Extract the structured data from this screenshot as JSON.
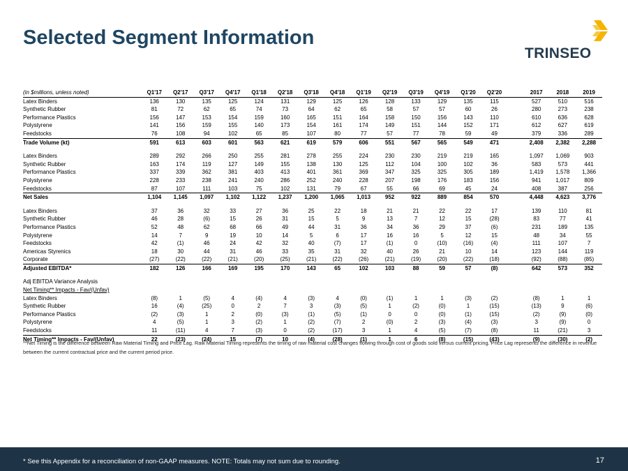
{
  "title": "Selected Segment Information",
  "logo": {
    "text": "TRINSEO",
    "mark": "."
  },
  "table": {
    "unit_label": "(in $millions, unless noted)",
    "columns": [
      "Q1'17",
      "Q2'17",
      "Q3'17",
      "Q4'17",
      "Q1'18",
      "Q2'18",
      "Q3'18",
      "Q4'18",
      "Q1'19",
      "Q2'19",
      "Q3'19",
      "Q4'19",
      "Q1'20",
      "Q2'20",
      "",
      "2017",
      "2018",
      "2019"
    ],
    "rows": [
      {
        "label": "Latex Binders",
        "values": [
          "136",
          "130",
          "135",
          "125",
          "124",
          "131",
          "129",
          "125",
          "126",
          "128",
          "133",
          "129",
          "135",
          "115",
          "",
          "527",
          "510",
          "516"
        ]
      },
      {
        "label": "Synthetic Rubber",
        "values": [
          "81",
          "72",
          "62",
          "65",
          "74",
          "73",
          "64",
          "62",
          "65",
          "58",
          "57",
          "57",
          "60",
          "26",
          "",
          "280",
          "273",
          "238"
        ]
      },
      {
        "label": "Performance Plastics",
        "values": [
          "156",
          "147",
          "153",
          "154",
          "159",
          "160",
          "165",
          "151",
          "164",
          "158",
          "150",
          "156",
          "143",
          "110",
          "",
          "610",
          "636",
          "628"
        ]
      },
      {
        "label": "Polystyrene",
        "values": [
          "141",
          "156",
          "159",
          "155",
          "140",
          "173",
          "154",
          "161",
          "174",
          "149",
          "151",
          "144",
          "152",
          "171",
          "",
          "612",
          "627",
          "619"
        ]
      },
      {
        "label": "Feedstocks",
        "values": [
          "76",
          "108",
          "94",
          "102",
          "65",
          "85",
          "107",
          "80",
          "77",
          "57",
          "77",
          "78",
          "59",
          "49",
          "",
          "379",
          "336",
          "289"
        ]
      },
      {
        "label": "Trade Volume (kt)",
        "total": true,
        "values": [
          "591",
          "613",
          "603",
          "601",
          "563",
          "621",
          "619",
          "579",
          "606",
          "551",
          "567",
          "565",
          "549",
          "471",
          "",
          "2,408",
          "2,382",
          "2,288"
        ]
      },
      {
        "spacer": true
      },
      {
        "label": "Latex Binders",
        "values": [
          "289",
          "292",
          "266",
          "250",
          "255",
          "281",
          "278",
          "255",
          "224",
          "230",
          "230",
          "219",
          "219",
          "165",
          "",
          "1,097",
          "1,069",
          "903"
        ]
      },
      {
        "label": "Synthetic Rubber",
        "values": [
          "163",
          "174",
          "119",
          "127",
          "149",
          "155",
          "138",
          "130",
          "125",
          "112",
          "104",
          "100",
          "102",
          "36",
          "",
          "583",
          "573",
          "441"
        ]
      },
      {
        "label": "Performance Plastics",
        "values": [
          "337",
          "339",
          "362",
          "381",
          "403",
          "413",
          "401",
          "361",
          "369",
          "347",
          "325",
          "325",
          "305",
          "189",
          "",
          "1,419",
          "1,578",
          "1,366"
        ]
      },
      {
        "label": "Polystyrene",
        "values": [
          "228",
          "233",
          "238",
          "241",
          "240",
          "286",
          "252",
          "240",
          "228",
          "207",
          "198",
          "176",
          "183",
          "156",
          "",
          "941",
          "1,017",
          "809"
        ]
      },
      {
        "label": "Feedstocks",
        "values": [
          "87",
          "107",
          "111",
          "103",
          "75",
          "102",
          "131",
          "79",
          "67",
          "55",
          "66",
          "69",
          "45",
          "24",
          "",
          "408",
          "387",
          "256"
        ]
      },
      {
        "label": "Net Sales",
        "total": true,
        "values": [
          "1,104",
          "1,145",
          "1,097",
          "1,102",
          "1,122",
          "1,237",
          "1,200",
          "1,065",
          "1,013",
          "952",
          "922",
          "889",
          "854",
          "570",
          "",
          "4,448",
          "4,623",
          "3,776"
        ]
      },
      {
        "spacer": true
      },
      {
        "label": "Latex Binders",
        "values": [
          "37",
          "36",
          "32",
          "33",
          "27",
          "36",
          "25",
          "22",
          "18",
          "21",
          "21",
          "22",
          "22",
          "17",
          "",
          "139",
          "110",
          "81"
        ]
      },
      {
        "label": "Synthetic Rubber",
        "values": [
          "46",
          "28",
          "(6)",
          "15",
          "26",
          "31",
          "15",
          "5",
          "9",
          "13",
          "7",
          "12",
          "15",
          "(28)",
          "",
          "83",
          "77",
          "41"
        ]
      },
      {
        "label": "Performance Plastics",
        "values": [
          "52",
          "48",
          "62",
          "68",
          "66",
          "49",
          "44",
          "31",
          "36",
          "34",
          "36",
          "29",
          "37",
          "(6)",
          "",
          "231",
          "189",
          "135"
        ]
      },
      {
        "label": "Polystyrene",
        "values": [
          "14",
          "7",
          "9",
          "19",
          "10",
          "14",
          "5",
          "6",
          "17",
          "16",
          "16",
          "5",
          "12",
          "15",
          "",
          "48",
          "34",
          "55"
        ]
      },
      {
        "label": "Feedstocks",
        "values": [
          "42",
          "(1)",
          "46",
          "24",
          "42",
          "32",
          "40",
          "(7)",
          "17",
          "(1)",
          "0",
          "(10)",
          "(16)",
          "(4)",
          "",
          "111",
          "107",
          "7"
        ]
      },
      {
        "label": "Americas Styrenics",
        "values": [
          "18",
          "30",
          "44",
          "31",
          "46",
          "33",
          "35",
          "31",
          "32",
          "40",
          "26",
          "21",
          "10",
          "14",
          "",
          "123",
          "144",
          "119"
        ]
      },
      {
        "label": "Corporate",
        "values": [
          "(27)",
          "(22)",
          "(22)",
          "(21)",
          "(20)",
          "(25)",
          "(21)",
          "(22)",
          "(26)",
          "(21)",
          "(19)",
          "(20)",
          "(22)",
          "(18)",
          "",
          "(92)",
          "(88)",
          "(85)"
        ]
      },
      {
        "label": "Adjusted EBITDA*",
        "total": true,
        "values": [
          "182",
          "126",
          "166",
          "169",
          "195",
          "170",
          "143",
          "65",
          "102",
          "103",
          "88",
          "59",
          "57",
          "(8)",
          "",
          "642",
          "573",
          "352"
        ]
      },
      {
        "spacer": true
      },
      {
        "label": "Adj EBITDA Variance Analysis",
        "heading": true
      },
      {
        "label": "Net Timing** Impacts - Fav/(Unfav)",
        "heading": true,
        "underline": true
      },
      {
        "label": "Latex Binders",
        "values": [
          "(8)",
          "1",
          "(5)",
          "4",
          "(4)",
          "4",
          "(3)",
          "4",
          "(0)",
          "(1)",
          "1",
          "1",
          "(3)",
          "(2)",
          "",
          "(8)",
          "1",
          "1"
        ]
      },
      {
        "label": "Synthetic Rubber",
        "values": [
          "16",
          "(4)",
          "(25)",
          "0",
          "2",
          "7",
          "3",
          "(3)",
          "(5)",
          "1",
          "(2)",
          "(0)",
          "1",
          "(15)",
          "",
          "(13)",
          "9",
          "(6)"
        ]
      },
      {
        "label": "Performance Plastics",
        "values": [
          "(2)",
          "(3)",
          "1",
          "2",
          "(0)",
          "(3)",
          "(1)",
          "(5)",
          "(1)",
          "0",
          "0",
          "(0)",
          "(1)",
          "(15)",
          "",
          "(2)",
          "(9)",
          "(0)"
        ]
      },
      {
        "label": "Polystyrene",
        "values": [
          "4",
          "(5)",
          "1",
          "3",
          "(2)",
          "1",
          "(2)",
          "(7)",
          "2",
          "(0)",
          "2",
          "(3)",
          "(4)",
          "(3)",
          "",
          "3",
          "(9)",
          "0"
        ]
      },
      {
        "label": "Feedstocks",
        "values": [
          "11",
          "(11)",
          "4",
          "7",
          "(3)",
          "0",
          "(2)",
          "(17)",
          "3",
          "1",
          "4",
          "(5)",
          "(7)",
          "(8)",
          "",
          "11",
          "(21)",
          "3"
        ]
      },
      {
        "label": "Net Timing** Impacts - Fav/(Unfav)",
        "total": true,
        "values": [
          "22",
          "(23)",
          "(24)",
          "15",
          "(7)",
          "10",
          "(4)",
          "(28)",
          "(1)",
          "1",
          "6",
          "(8)",
          "(15)",
          "(43)",
          "",
          "(9)",
          "(30)",
          "(2)"
        ]
      }
    ]
  },
  "footnote": "**Net Timing is the difference between Raw Material Timing and Price Lag. Raw Material Timing represents the timing of raw material cost changes flowing through cost of goods sold versus current pricing. Price Lag represents the difference in revenue between the current contractual price and the current period price.",
  "footer": {
    "note": "* See this Appendix for a reconciliation of non-GAAP measures.  NOTE: Totals may not sum due to rounding.",
    "page_number": "17"
  },
  "colors": {
    "title": "#1f4662",
    "footer_bg": "#1e3446",
    "logo_text": "#253c50",
    "logo_mark": "#f5b400"
  }
}
